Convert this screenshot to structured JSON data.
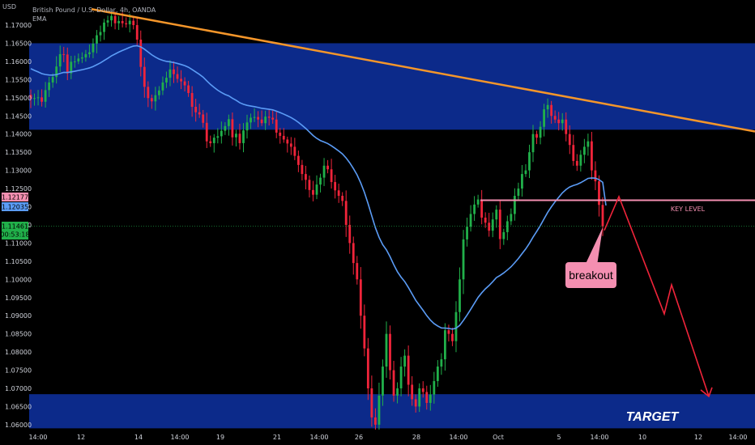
{
  "header": {
    "currency": "USD",
    "symbol": "British Pound / U.S. Dollar, 4h, OANDA",
    "indicator": "EMA"
  },
  "chart_data": {
    "type": "candlestick",
    "y_ticks": [
      "1.17000",
      "1.16500",
      "1.16000",
      "1.15500",
      "1.15000",
      "1.14500",
      "1.14000",
      "1.13500",
      "1.13000",
      "1.12500",
      "1.12000",
      "1.11500",
      "1.11000",
      "1.10500",
      "1.10000",
      "1.09500",
      "1.09000",
      "1.08500",
      "1.08000",
      "1.07500",
      "1.07000",
      "1.06500",
      "1.06000"
    ],
    "y_range": [
      1.059,
      1.175
    ],
    "x_ticks": [
      "14:00",
      "12",
      "14",
      "14:00",
      "19",
      "21",
      "14:00",
      "26",
      "28",
      "14:00",
      "Oct",
      "5",
      "14:00",
      "10",
      "12",
      "14:00"
    ],
    "price_labels": {
      "key_level": "1.12177",
      "ema": "1.12035",
      "last_price": "1.11461",
      "countdown": "00:53:18"
    },
    "zones": [
      {
        "name": "supply-zone",
        "from": 1.1412,
        "to": 1.165,
        "color": "#0c2a8a"
      },
      {
        "name": "target-zone",
        "from": 1.059,
        "to": 1.0684,
        "color": "#0c2a8a"
      }
    ],
    "key_level": {
      "price": 1.12177,
      "label": "KEY LEVEL",
      "color": "#f48fb1"
    },
    "last_price_line": 1.11461,
    "annotations": {
      "breakout": "breakout",
      "target": "TARGET"
    },
    "colors": {
      "up": "#21b04a",
      "down": "#f0243a",
      "ema": "#5b9cf6",
      "trendline": "#f5962a",
      "projection": "#f0243a"
    },
    "trendline": {
      "start": 1.1744,
      "end": 1.1407
    },
    "candles_note": "",
    "closes": [
      1.1497,
      1.1499,
      1.1501,
      1.1489,
      1.1521,
      1.1542,
      1.1557,
      1.1586,
      1.162,
      1.1619,
      1.1567,
      1.1599,
      1.16,
      1.1608,
      1.1611,
      1.162,
      1.1625,
      1.1649,
      1.1672,
      1.1681,
      1.1707,
      1.1713,
      1.1725,
      1.1705,
      1.1711,
      1.1705,
      1.1702,
      1.1712,
      1.17,
      1.166,
      1.1585,
      1.153,
      1.1499,
      1.149,
      1.1507,
      1.152,
      1.1542,
      1.1555,
      1.1578,
      1.1565,
      1.1552,
      1.1545,
      1.1534,
      1.1513,
      1.1475,
      1.146,
      1.1454,
      1.1431,
      1.138,
      1.1375,
      1.139,
      1.1394,
      1.1409,
      1.1422,
      1.1441,
      1.1391,
      1.1401,
      1.1375,
      1.141,
      1.1432,
      1.1445,
      1.1447,
      1.144,
      1.143,
      1.1448,
      1.1445,
      1.144,
      1.1404,
      1.1395,
      1.1385,
      1.1374,
      1.1365,
      1.134,
      1.1315,
      1.129,
      1.1274,
      1.1246,
      1.1233,
      1.1261,
      1.128,
      1.1313,
      1.1303,
      1.1268,
      1.1245,
      1.123,
      1.1216,
      1.115,
      1.11,
      1.1045,
      1.1,
      1.09,
      1.081,
      1.07,
      1.062,
      1.06,
      1.068,
      1.076,
      1.085,
      1.075,
      1.068,
      1.07,
      1.076,
      1.079,
      1.071,
      1.067,
      1.065,
      1.07,
      1.069,
      1.066,
      1.0683,
      1.072,
      1.076,
      1.078,
      1.086,
      1.085,
      1.083,
      1.091,
      1.1,
      1.111,
      1.1145,
      1.118,
      1.1206,
      1.122,
      1.117,
      1.1156,
      1.1134,
      1.1165,
      1.1192,
      1.1111,
      1.113,
      1.116,
      1.118,
      1.123,
      1.125,
      1.129,
      1.13,
      1.135,
      1.14,
      1.139,
      1.142,
      1.1468,
      1.148,
      1.145,
      1.144,
      1.143,
      1.144,
      1.14,
      1.137,
      1.1326,
      1.1313,
      1.1343,
      1.1365,
      1.138,
      1.13,
      1.127,
      1.1205,
      1.1146
    ]
  }
}
